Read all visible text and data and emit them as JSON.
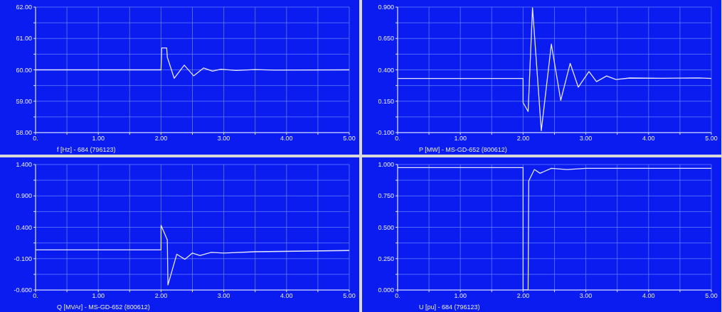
{
  "chart_data": [
    {
      "type": "line",
      "xlabel": "f [Hz] - 684 (796123)",
      "xlim": [
        0,
        5
      ],
      "xticks": [
        {
          "value": 0,
          "label": "0."
        },
        {
          "value": 0.5,
          "label": null
        },
        {
          "value": 1,
          "label": "1.00"
        },
        {
          "value": 1.5,
          "label": null
        },
        {
          "value": 2,
          "label": "2.00"
        },
        {
          "value": 2.5,
          "label": null
        },
        {
          "value": 3,
          "label": "3.00"
        },
        {
          "value": 3.5,
          "label": null
        },
        {
          "value": 4,
          "label": "4.00"
        },
        {
          "value": 4.5,
          "label": null
        },
        {
          "value": 5,
          "label": "5.00"
        }
      ],
      "ylim": [
        58,
        62
      ],
      "yticks": [
        {
          "value": 58,
          "label": "58.00"
        },
        {
          "value": 58.5,
          "label": null
        },
        {
          "value": 59,
          "label": "59.00"
        },
        {
          "value": 59.5,
          "label": null
        },
        {
          "value": 60,
          "label": "60.00"
        },
        {
          "value": 60.5,
          "label": null
        },
        {
          "value": 61,
          "label": "61.00"
        },
        {
          "value": 61.5,
          "label": null
        },
        {
          "value": 62,
          "label": "62.00"
        }
      ],
      "grid": true,
      "series": [
        {
          "color": "#e6e6ff",
          "x": [
            0,
            2,
            2.01,
            2.09,
            2.1,
            2.21,
            2.37,
            2.52,
            2.68,
            2.82,
            2.95,
            3.2,
            3.5,
            3.8,
            5
          ],
          "values": [
            60,
            60,
            60.7,
            60.7,
            60.4,
            59.73,
            60.15,
            59.81,
            60.06,
            59.96,
            60.02,
            59.98,
            60.01,
            59.99,
            60
          ]
        }
      ]
    },
    {
      "type": "line",
      "xlabel": "P [MW] - MS-GD-652 (800612)",
      "xlim": [
        0,
        5
      ],
      "xticks": [
        {
          "value": 0,
          "label": "0."
        },
        {
          "value": 0.5,
          "label": null
        },
        {
          "value": 1,
          "label": "1.00"
        },
        {
          "value": 1.5,
          "label": null
        },
        {
          "value": 2,
          "label": "2.00"
        },
        {
          "value": 2.5,
          "label": null
        },
        {
          "value": 3,
          "label": "3.00"
        },
        {
          "value": 3.5,
          "label": null
        },
        {
          "value": 4,
          "label": "4.00"
        },
        {
          "value": 4.5,
          "label": null
        },
        {
          "value": 5,
          "label": "5.00"
        }
      ],
      "ylim": [
        -0.1,
        0.9
      ],
      "yticks": [
        {
          "value": -0.1,
          "label": "-0.100"
        },
        {
          "value": 0.025,
          "label": null
        },
        {
          "value": 0.15,
          "label": "0.150"
        },
        {
          "value": 0.275,
          "label": null
        },
        {
          "value": 0.4,
          "label": "0.400"
        },
        {
          "value": 0.525,
          "label": null
        },
        {
          "value": 0.65,
          "label": "0.650"
        },
        {
          "value": 0.775,
          "label": null
        },
        {
          "value": 0.9,
          "label": "0.900"
        }
      ],
      "grid": true,
      "series": [
        {
          "color": "#e6e6ff",
          "x": [
            0,
            2,
            2.0,
            2.08,
            2.15,
            2.29,
            2.45,
            2.6,
            2.75,
            2.88,
            3.05,
            3.17,
            3.33,
            3.48,
            3.7,
            4.2,
            4.8,
            5
          ],
          "values": [
            0.332,
            0.332,
            0.139,
            0.068,
            0.895,
            -0.085,
            0.605,
            0.157,
            0.452,
            0.262,
            0.386,
            0.306,
            0.351,
            0.323,
            0.335,
            0.333,
            0.336,
            0.332
          ]
        }
      ]
    },
    {
      "type": "line",
      "xlabel": "Q [MVAr] - MS-GD-652 (800612)",
      "xlim": [
        0,
        5
      ],
      "xticks": [
        {
          "value": 0,
          "label": "0."
        },
        {
          "value": 0.5,
          "label": null
        },
        {
          "value": 1,
          "label": "1.00"
        },
        {
          "value": 1.5,
          "label": null
        },
        {
          "value": 2,
          "label": "2.00"
        },
        {
          "value": 2.5,
          "label": null
        },
        {
          "value": 3,
          "label": "3.00"
        },
        {
          "value": 3.5,
          "label": null
        },
        {
          "value": 4,
          "label": "4.00"
        },
        {
          "value": 4.5,
          "label": null
        },
        {
          "value": 5,
          "label": "5.00"
        }
      ],
      "ylim": [
        -0.6,
        1.4
      ],
      "yticks": [
        {
          "value": -0.6,
          "label": "-0.600"
        },
        {
          "value": -0.35,
          "label": null
        },
        {
          "value": -0.1,
          "label": "-0.100"
        },
        {
          "value": 0.15,
          "label": null
        },
        {
          "value": 0.4,
          "label": "0.400"
        },
        {
          "value": 0.65,
          "label": null
        },
        {
          "value": 0.9,
          "label": "0.900"
        },
        {
          "value": 1.15,
          "label": null
        },
        {
          "value": 1.4,
          "label": "1.400"
        }
      ],
      "grid": true,
      "series": [
        {
          "color": "#e6e6ff",
          "x": [
            0,
            2,
            2.0,
            2.1,
            2.11,
            2.25,
            2.38,
            2.5,
            2.62,
            2.8,
            3.0,
            3.5,
            5
          ],
          "values": [
            0.04,
            0.04,
            0.43,
            0.2,
            -0.52,
            -0.03,
            -0.11,
            -0.01,
            -0.05,
            0,
            -0.01,
            0.01,
            0.03
          ]
        }
      ]
    },
    {
      "type": "line",
      "xlabel": "U [pu] - 684 (796123)",
      "xlim": [
        0,
        5
      ],
      "xticks": [
        {
          "value": 0,
          "label": "0."
        },
        {
          "value": 0.5,
          "label": null
        },
        {
          "value": 1,
          "label": "1.00"
        },
        {
          "value": 1.5,
          "label": null
        },
        {
          "value": 2,
          "label": "2.00"
        },
        {
          "value": 2.5,
          "label": null
        },
        {
          "value": 3,
          "label": "3.00"
        },
        {
          "value": 3.5,
          "label": null
        },
        {
          "value": 4,
          "label": "4.00"
        },
        {
          "value": 4.5,
          "label": null
        },
        {
          "value": 5,
          "label": "5.00"
        }
      ],
      "ylim": [
        0,
        1
      ],
      "yticks": [
        {
          "value": 0,
          "label": "0.000"
        },
        {
          "value": 0.125,
          "label": null
        },
        {
          "value": 0.25,
          "label": "0.250"
        },
        {
          "value": 0.375,
          "label": null
        },
        {
          "value": 0.5,
          "label": "0.500"
        },
        {
          "value": 0.625,
          "label": null
        },
        {
          "value": 0.75,
          "label": "0.750"
        },
        {
          "value": 0.875,
          "label": null
        },
        {
          "value": 1,
          "label": "1.000"
        }
      ],
      "grid": true,
      "series": [
        {
          "color": "#e6e6ff",
          "x": [
            0,
            2,
            2.0,
            2.08,
            2.09,
            2.18,
            2.27,
            2.45,
            2.7,
            3,
            5
          ],
          "values": [
            0.975,
            0.975,
            0,
            0,
            0.87,
            0.96,
            0.93,
            0.97,
            0.96,
            0.97,
            0.97
          ]
        }
      ]
    }
  ]
}
